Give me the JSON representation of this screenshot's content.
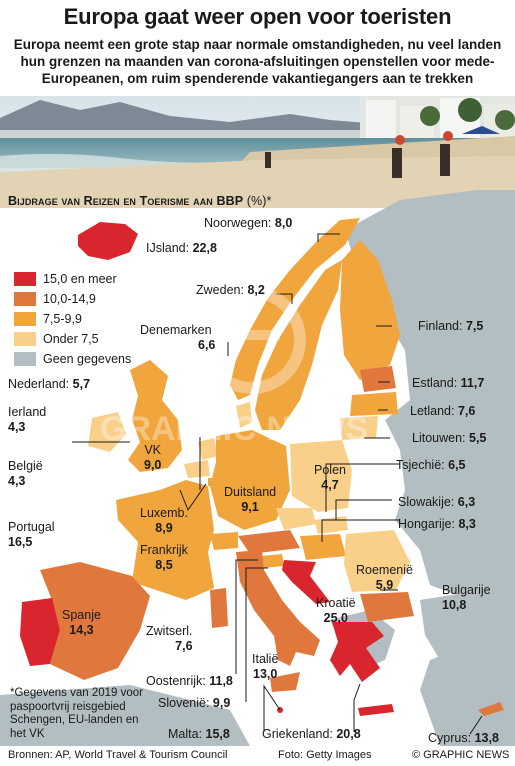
{
  "title": "Europa gaat weer open voor toeristen",
  "subtitle": "Europa neemt een grote stap naar normale omstandigheden, nu veel landen hun grenzen na maanden van corona-afsluitingen openstellen voor mede-Europeanen, om ruim spenderende vakantiegangers aan te trekken",
  "map_title": "Bijdrage van Reizen en Toerisme aan BBP",
  "map_title_unit": "(%)*",
  "legend": [
    {
      "label": "15,0 en meer",
      "color": "#d9252d"
    },
    {
      "label": "10,0-14,9",
      "color": "#e0783d"
    },
    {
      "label": "7,5-9,9",
      "color": "#f0a53d"
    },
    {
      "label": "Onder 7,5",
      "color": "#f9d08a"
    },
    {
      "label": "Geen gegevens",
      "color": "#b3bec2"
    }
  ],
  "countries": {
    "noorwegen": {
      "name": "Noorwegen:",
      "value": "8,0"
    },
    "ijsland": {
      "name": "IJsland:",
      "value": "22,8"
    },
    "zweden": {
      "name": "Zweden:",
      "value": "8,2"
    },
    "denemarken": {
      "name": "Denemarken",
      "value": "6,6"
    },
    "finland": {
      "name": "Finland:",
      "value": "7,5"
    },
    "nederland": {
      "name": "Nederland:",
      "value": "5,7"
    },
    "estland": {
      "name": "Estland:",
      "value": "11,7"
    },
    "ierland": {
      "name": "Ierland",
      "value": "4,3"
    },
    "letland": {
      "name": "Letland:",
      "value": "7,6"
    },
    "litouwen": {
      "name": "Litouwen:",
      "value": "5,5"
    },
    "vk": {
      "name": "VK",
      "value": "9,0"
    },
    "belgie": {
      "name": "België",
      "value": "4,3"
    },
    "polen": {
      "name": "Polen",
      "value": "4,7"
    },
    "tsjechie": {
      "name": "Tsjechië:",
      "value": "6,5"
    },
    "duitsland": {
      "name": "Duitsland",
      "value": "9,1"
    },
    "luxemburg": {
      "name": "Luxemb.",
      "value": "8,9"
    },
    "slowakije": {
      "name": "Slowakije:",
      "value": "6,3"
    },
    "hongarije": {
      "name": "Hongarije:",
      "value": "8,3"
    },
    "frankrijk": {
      "name": "Frankrijk",
      "value": "8,5"
    },
    "portugal": {
      "name": "Portugal",
      "value": "16,5"
    },
    "roemenie": {
      "name": "Roemenië",
      "value": "5,9"
    },
    "bulgarije": {
      "name": "Bulgarije",
      "value": "10,8"
    },
    "spanje": {
      "name": "Spanje",
      "value": "14,3"
    },
    "kroatie": {
      "name": "Kroatië",
      "value": "25,0"
    },
    "zwitserland": {
      "name": "Zwitserl.",
      "value": "7,6"
    },
    "italie": {
      "name": "Italië",
      "value": "13,0"
    },
    "oostenrijk": {
      "name": "Oostenrijk:",
      "value": "11,8"
    },
    "slovenie": {
      "name": "Slovenië:",
      "value": "9,9"
    },
    "malta": {
      "name": "Malta:",
      "value": "15,8"
    },
    "griekenland": {
      "name": "Griekenland:",
      "value": "20,8"
    },
    "cyprus": {
      "name": "Cyprus:",
      "value": "13,8"
    }
  },
  "footnote": "*Gegevens van 2019 voor paspoortvrij reisgebied Schengen, EU-landen en het VK",
  "footer": {
    "sources": "Bronnen: AP, World Travel & Tourism Council",
    "photo": "Foto: Getty Images",
    "copyright": "© GRAPHIC NEWS"
  },
  "watermark": "GRAPHIC NEWS",
  "colors": {
    "sea": "#ffffff",
    "nodata": "#b3bec2"
  }
}
